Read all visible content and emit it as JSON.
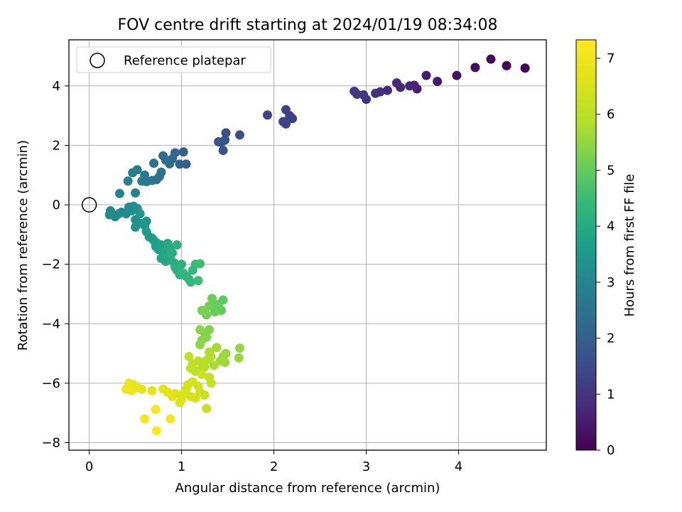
{
  "chart_data": {
    "type": "scatter",
    "title": "FOV centre drift starting at 2024/01/19 08:34:08",
    "xlabel": "Angular distance from reference (arcmin)",
    "ylabel": "Rotation from reference (arcmin)",
    "xlim": [
      -0.22,
      4.95
    ],
    "ylim": [
      -8.25,
      5.55
    ],
    "xticks": [
      0,
      1,
      2,
      3,
      4
    ],
    "yticks": [
      -8,
      -6,
      -4,
      -2,
      0,
      2,
      4
    ],
    "grid": true,
    "legend": {
      "position": "top-left",
      "entries": [
        "Reference platepar"
      ]
    },
    "reference_point": {
      "x": 0,
      "y": 0
    },
    "colorbar": {
      "label": "Hours from first FF file",
      "range": [
        0,
        7.33
      ],
      "ticks": [
        0,
        1,
        2,
        3,
        4,
        5,
        6,
        7
      ],
      "colormap": "viridis"
    },
    "series": [
      {
        "points": [
          [
            4.72,
            4.6,
            0.05
          ],
          [
            4.52,
            4.68,
            0.1
          ],
          [
            4.35,
            4.9,
            0.15
          ],
          [
            4.18,
            4.62,
            0.2
          ],
          [
            3.98,
            4.35,
            0.3
          ],
          [
            3.77,
            4.15,
            0.45
          ],
          [
            3.65,
            4.35,
            0.55
          ],
          [
            3.55,
            3.9,
            0.6
          ],
          [
            3.52,
            4.02,
            0.65
          ],
          [
            3.47,
            4.0,
            0.7
          ],
          [
            3.37,
            3.95,
            0.75
          ],
          [
            3.33,
            4.1,
            0.8
          ],
          [
            3.23,
            3.85,
            0.85
          ],
          [
            3.15,
            3.8,
            0.9
          ],
          [
            3.1,
            3.75,
            0.95
          ],
          [
            3.0,
            3.55,
            1.0
          ],
          [
            2.97,
            3.7,
            1.05
          ],
          [
            2.9,
            3.72,
            1.1
          ],
          [
            2.87,
            3.82,
            1.12
          ],
          [
            2.2,
            2.9,
            1.25
          ],
          [
            2.17,
            3.0,
            1.28
          ],
          [
            2.13,
            3.2,
            1.3
          ],
          [
            2.13,
            2.72,
            1.33
          ],
          [
            2.1,
            2.8,
            1.36
          ],
          [
            1.93,
            3.02,
            1.4
          ],
          [
            1.63,
            2.35,
            1.55
          ],
          [
            1.48,
            2.42,
            1.6
          ],
          [
            1.47,
            2.18,
            1.62
          ],
          [
            1.45,
            1.83,
            1.65
          ],
          [
            1.43,
            2.1,
            1.68
          ],
          [
            1.4,
            2.12,
            1.72
          ],
          [
            1.05,
            1.37,
            2.0
          ],
          [
            1.02,
            1.78,
            2.05
          ],
          [
            0.98,
            1.37,
            2.1
          ],
          [
            0.93,
            1.75,
            2.15
          ],
          [
            0.9,
            1.55,
            2.2
          ],
          [
            0.87,
            1.38,
            2.25
          ],
          [
            0.83,
            1.5,
            2.3
          ],
          [
            0.8,
            1.65,
            2.35
          ],
          [
            0.78,
            1.1,
            2.4
          ],
          [
            0.76,
            0.95,
            2.45
          ],
          [
            0.73,
            0.85,
            2.5
          ],
          [
            0.7,
            1.4,
            2.55
          ],
          [
            0.68,
            0.82,
            2.6
          ],
          [
            0.62,
            0.78,
            2.65
          ],
          [
            0.6,
            1.0,
            2.7
          ],
          [
            0.57,
            0.8,
            2.75
          ],
          [
            0.52,
            1.18,
            2.8
          ],
          [
            0.47,
            1.08,
            2.85
          ],
          [
            0.42,
            0.8,
            2.9
          ],
          [
            0.5,
            0.4,
            2.95
          ],
          [
            0.33,
            0.38,
            3.0
          ],
          [
            0.23,
            -0.2,
            3.05
          ],
          [
            0.22,
            -0.33,
            3.08
          ],
          [
            0.28,
            -0.4,
            3.1
          ],
          [
            0.32,
            -0.3,
            3.12
          ],
          [
            0.35,
            -0.25,
            3.15
          ],
          [
            0.4,
            -0.3,
            3.18
          ],
          [
            0.43,
            -0.08,
            3.2
          ],
          [
            0.46,
            -0.2,
            3.23
          ],
          [
            0.48,
            -0.05,
            3.26
          ],
          [
            0.5,
            -0.5,
            3.3
          ],
          [
            0.5,
            -0.75,
            3.33
          ],
          [
            0.52,
            -0.12,
            3.36
          ],
          [
            0.55,
            -0.3,
            3.4
          ],
          [
            0.57,
            -0.62,
            3.43
          ],
          [
            0.6,
            -0.7,
            3.46
          ],
          [
            0.62,
            -0.55,
            3.5
          ],
          [
            0.62,
            -0.9,
            3.53
          ],
          [
            0.65,
            -1.08,
            3.56
          ],
          [
            0.68,
            -1.12,
            3.6
          ],
          [
            0.7,
            -1.2,
            3.63
          ],
          [
            0.72,
            -1.4,
            3.66
          ],
          [
            0.73,
            -1.28,
            3.7
          ],
          [
            0.75,
            -1.5,
            3.73
          ],
          [
            0.78,
            -1.35,
            3.76
          ],
          [
            0.78,
            -1.8,
            3.8
          ],
          [
            0.8,
            -1.7,
            3.83
          ],
          [
            0.82,
            -1.58,
            3.86
          ],
          [
            0.83,
            -1.9,
            3.9
          ],
          [
            0.85,
            -1.75,
            3.93
          ],
          [
            0.85,
            -1.3,
            3.96
          ],
          [
            0.87,
            -1.45,
            4.0
          ],
          [
            0.88,
            -1.85,
            4.03
          ],
          [
            0.9,
            -1.62,
            4.06
          ],
          [
            0.92,
            -1.95,
            4.1
          ],
          [
            0.93,
            -2.1,
            4.13
          ],
          [
            0.95,
            -2.2,
            4.16
          ],
          [
            0.95,
            -1.35,
            4.2
          ],
          [
            0.98,
            -2.35,
            4.23
          ],
          [
            1.0,
            -2.0,
            4.26
          ],
          [
            1.02,
            -2.3,
            4.3
          ],
          [
            1.05,
            -2.4,
            4.33
          ],
          [
            1.08,
            -2.5,
            4.36
          ],
          [
            1.1,
            -2.6,
            4.4
          ],
          [
            1.12,
            -2.2,
            4.43
          ],
          [
            1.15,
            -2.0,
            4.46
          ],
          [
            1.18,
            -2.55,
            4.5
          ],
          [
            1.2,
            -1.98,
            4.53
          ],
          [
            1.45,
            -3.2,
            4.95
          ],
          [
            1.43,
            -3.55,
            4.98
          ],
          [
            1.4,
            -3.45,
            5.0
          ],
          [
            1.38,
            -3.35,
            5.03
          ],
          [
            1.36,
            -3.6,
            5.06
          ],
          [
            1.33,
            -3.15,
            5.1
          ],
          [
            1.3,
            -3.4,
            5.13
          ],
          [
            1.27,
            -3.7,
            5.16
          ],
          [
            1.25,
            -3.55,
            5.2
          ],
          [
            1.22,
            -3.55,
            5.23
          ],
          [
            1.3,
            -4.2,
            5.3
          ],
          [
            1.27,
            -4.45,
            5.33
          ],
          [
            1.25,
            -4.3,
            5.36
          ],
          [
            1.22,
            -4.55,
            5.4
          ],
          [
            1.2,
            -4.2,
            5.43
          ],
          [
            1.2,
            -4.7,
            5.46
          ],
          [
            1.63,
            -4.82,
            5.5
          ],
          [
            1.62,
            -5.15,
            5.53
          ],
          [
            1.48,
            -5.0,
            5.56
          ],
          [
            1.47,
            -5.3,
            5.6
          ],
          [
            1.45,
            -5.1,
            5.63
          ],
          [
            1.42,
            -5.25,
            5.66
          ],
          [
            1.38,
            -4.8,
            5.7
          ],
          [
            1.35,
            -5.4,
            5.73
          ],
          [
            1.32,
            -5.1,
            5.76
          ],
          [
            1.3,
            -4.95,
            5.8
          ],
          [
            1.28,
            -5.2,
            5.83
          ],
          [
            1.25,
            -5.45,
            5.86
          ],
          [
            1.22,
            -5.3,
            5.9
          ],
          [
            1.2,
            -5.55,
            5.93
          ],
          [
            1.18,
            -5.25,
            5.96
          ],
          [
            1.15,
            -5.6,
            6.0
          ],
          [
            1.12,
            -5.35,
            6.03
          ],
          [
            1.1,
            -5.5,
            6.06
          ],
          [
            1.08,
            -5.1,
            6.1
          ],
          [
            1.32,
            -6.0,
            6.13
          ],
          [
            1.3,
            -5.8,
            6.16
          ],
          [
            1.27,
            -6.85,
            6.2
          ],
          [
            1.25,
            -6.4,
            6.23
          ],
          [
            1.22,
            -5.7,
            6.26
          ],
          [
            1.2,
            -6.3,
            6.3
          ],
          [
            1.18,
            -6.1,
            6.33
          ],
          [
            1.15,
            -6.5,
            6.36
          ],
          [
            1.12,
            -5.95,
            6.4
          ],
          [
            1.1,
            -6.45,
            6.43
          ],
          [
            1.07,
            -6.05,
            6.46
          ],
          [
            1.05,
            -6.2,
            6.5
          ],
          [
            1.02,
            -6.35,
            6.53
          ],
          [
            1.0,
            -6.55,
            6.56
          ],
          [
            0.98,
            -6.65,
            6.6
          ],
          [
            0.93,
            -6.35,
            6.63
          ],
          [
            0.9,
            -6.45,
            6.66
          ],
          [
            0.85,
            -6.3,
            6.7
          ],
          [
            0.8,
            -6.2,
            6.73
          ],
          [
            0.68,
            -6.25,
            6.76
          ],
          [
            0.57,
            -6.2,
            6.8
          ],
          [
            0.52,
            -6.15,
            6.83
          ],
          [
            0.48,
            -6.05,
            6.86
          ],
          [
            0.45,
            -6.15,
            6.9
          ],
          [
            0.43,
            -6.0,
            6.93
          ],
          [
            0.4,
            -6.2,
            6.96
          ],
          [
            0.46,
            -6.25,
            7.0
          ],
          [
            0.88,
            -7.2,
            7.1
          ],
          [
            0.6,
            -7.2,
            7.15
          ],
          [
            0.72,
            -6.88,
            7.2
          ],
          [
            0.73,
            -7.6,
            7.3
          ]
        ]
      }
    ]
  }
}
